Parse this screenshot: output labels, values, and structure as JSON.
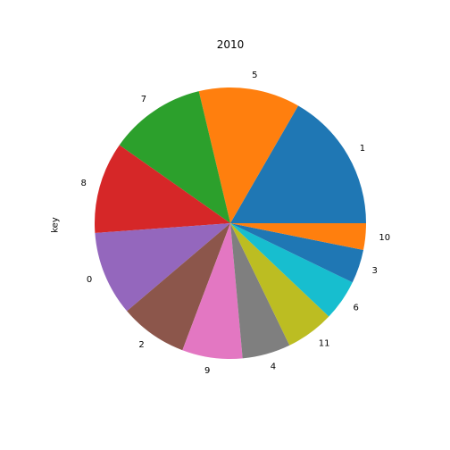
{
  "chart_data": {
    "type": "pie",
    "title": "2010",
    "ylabel": "key",
    "start_angle_deg": 0,
    "direction": "counterclockwise",
    "slices": [
      {
        "label": "1",
        "value": 58,
        "color": "#1f77b4"
      },
      {
        "label": "5",
        "value": 42,
        "color": "#ff7f0e"
      },
      {
        "label": "7",
        "value": 40,
        "color": "#2ca02c"
      },
      {
        "label": "8",
        "value": 38,
        "color": "#d62728"
      },
      {
        "label": "0",
        "value": 35,
        "color": "#9467bd"
      },
      {
        "label": "2",
        "value": 28,
        "color": "#8c564b"
      },
      {
        "label": "9",
        "value": 25,
        "color": "#e377c2"
      },
      {
        "label": "4",
        "value": 20,
        "color": "#7f7f7f"
      },
      {
        "label": "11",
        "value": 20,
        "color": "#bcbd22"
      },
      {
        "label": "6",
        "value": 17,
        "color": "#17becf"
      },
      {
        "label": "3",
        "value": 14,
        "color": "#1f77b4"
      },
      {
        "label": "10",
        "value": 11,
        "color": "#ff7f0e"
      }
    ]
  }
}
